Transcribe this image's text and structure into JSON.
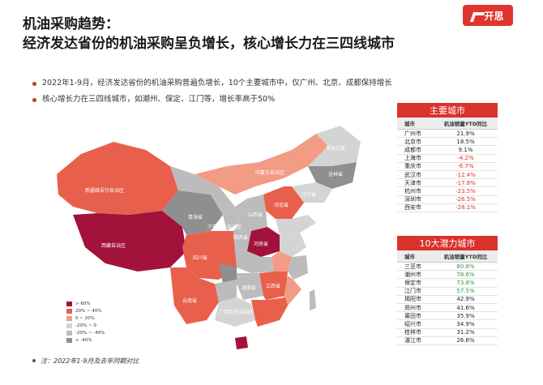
{
  "title": {
    "line1": "机油采购趋势：",
    "line2": "经济发达省份的机油采购呈负增长，核心增长力在三四线城市"
  },
  "logo": {
    "text": "开思"
  },
  "bullets": [
    "2022年1-9月，经济发达省份的机油采购普遍负增长，10个主要城市中，仅广州、北京、成都保持增长",
    "核心增长力在三四线城市，如潮州、保定、江门等，增长率高于50%"
  ],
  "colors": {
    "accent": "#d9322d",
    "positive_high": "#2e9a3e",
    "bin_gt60": "#a3123a",
    "bin_20_40": "#e8604c",
    "bin_0_20": "#f29b85",
    "bin_m20_0": "#d4d4d4",
    "bin_m40_m20": "#bcbcbc",
    "bin_lt_m40": "#8f8f8f"
  },
  "map": {
    "legend": [
      {
        "label": "> 60%",
        "color": "#a3123a"
      },
      {
        "label": "20% ~ 40%",
        "color": "#e8604c"
      },
      {
        "label": "0 ~ 20%",
        "color": "#f29b85"
      },
      {
        "label": "-20% ~ 0",
        "color": "#d4d4d4"
      },
      {
        "label": "-20% ~ -40%",
        "color": "#bcbcbc"
      },
      {
        "label": "< -40%",
        "color": "#8f8f8f"
      }
    ],
    "labels": {
      "xinjiang": "新疆维吾尔自治区",
      "xizang": "西藏自治区",
      "qinghai": "青海省",
      "sichuan": "四川省",
      "yunnan": "云南省",
      "guangxi": "广西壮族自治区",
      "henan": "河南省",
      "neimenggu": "内蒙古自治区",
      "heilongjiang": "黑龙江省",
      "jilin": "吉林省",
      "liaoning": "辽宁省",
      "shanxi": "山西省",
      "shaanxi": "陕西省",
      "ningxia": "宁夏回族自治区",
      "hunan": "湖南省",
      "jiangxi": "江西省",
      "hebei": "河北省"
    }
  },
  "main_cities": {
    "header": "主要城市",
    "col_city": "城市",
    "col_value": "机油销量YTD同比",
    "rows": [
      {
        "city": "广州市",
        "value": "21.9%",
        "neg": false
      },
      {
        "city": "北京市",
        "value": "18.5%",
        "neg": false
      },
      {
        "city": "成都市",
        "value": "9.1%",
        "neg": false
      },
      {
        "city": "上海市",
        "value": "-4.2%",
        "neg": true
      },
      {
        "city": "重庆市",
        "value": "-6.7%",
        "neg": true
      },
      {
        "city": "武汉市",
        "value": "-12.4%",
        "neg": true
      },
      {
        "city": "天津市",
        "value": "-17.8%",
        "neg": true
      },
      {
        "city": "杭州市",
        "value": "-23.5%",
        "neg": true
      },
      {
        "city": "深圳市",
        "value": "-26.5%",
        "neg": true
      },
      {
        "city": "西安市",
        "value": "-28.1%",
        "neg": true
      }
    ]
  },
  "potential_cities": {
    "header": "10大潜力城市",
    "col_city": "城市",
    "col_value": "机油销量YTD同比",
    "rows": [
      {
        "city": "三亚市",
        "value": "80.8%",
        "hi": true
      },
      {
        "city": "潮州市",
        "value": "78.6%",
        "hi": true
      },
      {
        "city": "保定市",
        "value": "73.8%",
        "hi": true
      },
      {
        "city": "江门市",
        "value": "57.5%",
        "hi": true
      },
      {
        "city": "揭阳市",
        "value": "42.9%",
        "hi": false
      },
      {
        "city": "郑州市",
        "value": "41.6%",
        "hi": false
      },
      {
        "city": "莆田市",
        "value": "35.9%",
        "hi": false
      },
      {
        "city": "绍兴市",
        "value": "34.9%",
        "hi": false
      },
      {
        "city": "桂林市",
        "value": "31.2%",
        "hi": false
      },
      {
        "city": "湛江市",
        "value": "26.6%",
        "hi": false
      }
    ]
  },
  "footnote": "注：2022年1-9月及去年同期对比"
}
